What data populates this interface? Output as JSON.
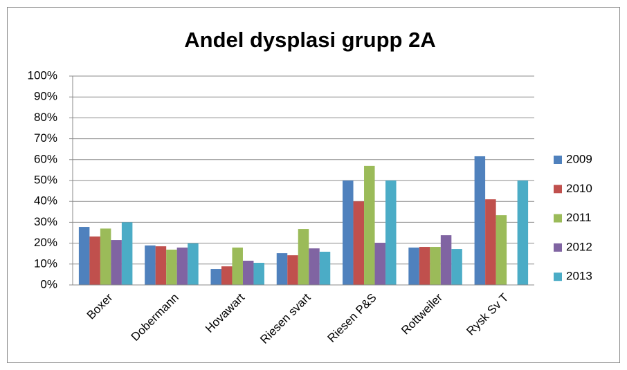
{
  "chart_data": {
    "type": "bar",
    "title": "Andel dysplasi grupp 2A",
    "categories": [
      "Boxer",
      "Dobermann",
      "Hovawart",
      "Riesen svart",
      "Riesen P&S",
      "Rottweiler",
      "Rysk Sv T"
    ],
    "series": [
      {
        "name": "2009",
        "color": "#4f81bd",
        "values": [
          27.8,
          18.9,
          7.6,
          15.2,
          50,
          17.9,
          61.6
        ]
      },
      {
        "name": "2010",
        "color": "#c0504d",
        "values": [
          23.2,
          18.5,
          8.9,
          14.2,
          40,
          18.2,
          41
        ]
      },
      {
        "name": "2011",
        "color": "#9bbb59",
        "values": [
          27,
          16.9,
          17.9,
          26.8,
          57,
          18.2,
          33.4
        ]
      },
      {
        "name": "2012",
        "color": "#8064a2",
        "values": [
          21.5,
          17.9,
          11.6,
          17.5,
          20.2,
          23.8,
          null
        ]
      },
      {
        "name": "2013",
        "color": "#4bacc6",
        "values": [
          30,
          19.9,
          10.6,
          15.9,
          50,
          17.2,
          50
        ]
      }
    ],
    "ylim": [
      0,
      100
    ],
    "yticks": [
      {
        "value": 0,
        "label": "0%"
      },
      {
        "value": 10,
        "label": "10%"
      },
      {
        "value": 20,
        "label": "20%"
      },
      {
        "value": 30,
        "label": "30%"
      },
      {
        "value": 40,
        "label": "40%"
      },
      {
        "value": 50,
        "label": "50%"
      },
      {
        "value": 60,
        "label": "60%"
      },
      {
        "value": 70,
        "label": "70%"
      },
      {
        "value": 80,
        "label": "80%"
      },
      {
        "value": 90,
        "label": "90%"
      },
      {
        "value": 100,
        "label": "100%"
      }
    ],
    "grid": true,
    "legend": "right"
  }
}
